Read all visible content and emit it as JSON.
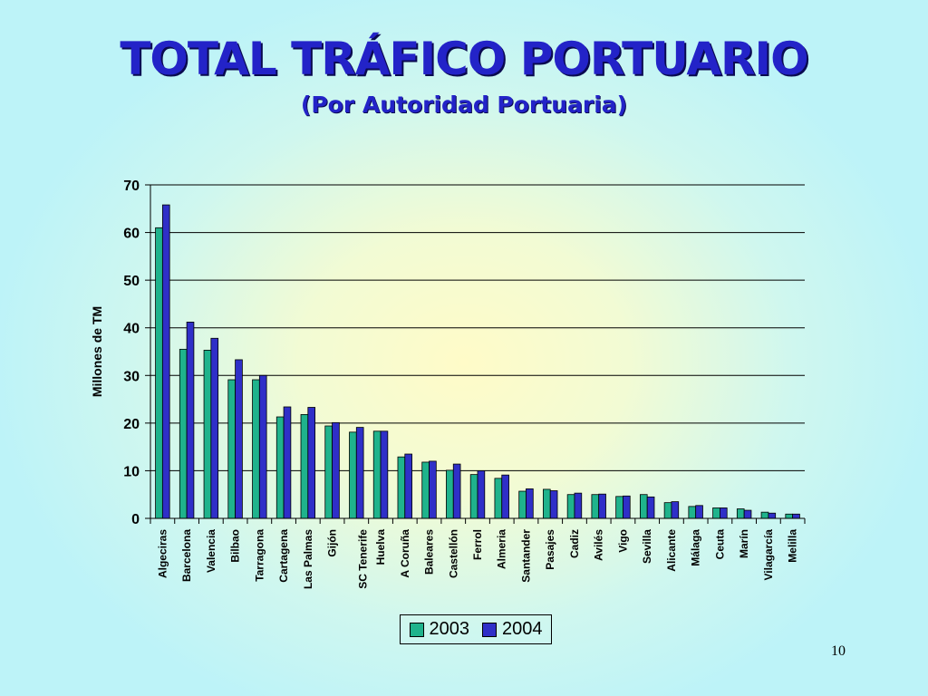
{
  "slide": {
    "page_number": "10"
  },
  "colors": {
    "series_2003": "#1fb38c",
    "series_2004": "#2f2fc8"
  },
  "chart_data": {
    "type": "bar",
    "title": "TOTAL TRÁFICO PORTUARIO",
    "subtitle": "(Por Autoridad Portuaria)",
    "xlabel": "",
    "ylabel": "Millones de TM",
    "ylim": [
      0,
      70
    ],
    "yticks": [
      "0",
      "10",
      "20",
      "30",
      "40",
      "50",
      "60",
      "70"
    ],
    "grid": true,
    "legend": "bottom",
    "categories": [
      "Algeciras",
      "Barcelona",
      "Valencia",
      "Bilbao",
      "Tarragona",
      "Cartagena",
      "Las Palmas",
      "Gijón",
      "SC Tenerife",
      "Huelva",
      "A Coruña",
      "Baleares",
      "Castellón",
      "Ferrol",
      "Almeria",
      "Santander",
      "Pasajes",
      "Cadiz",
      "Avilés",
      "Vigo",
      "Sevilla",
      "Alicante",
      "Málaga",
      "Ceuta",
      "Marín",
      "Vilagarcía",
      "Melilla"
    ],
    "series": [
      {
        "name": "2003",
        "values": [
          61,
          35.5,
          35.3,
          29.1,
          29.1,
          21.3,
          21.8,
          19.4,
          18.1,
          18.3,
          12.9,
          11.8,
          10.1,
          9.2,
          8.4,
          5.7,
          6.1,
          5.0,
          5.0,
          4.6,
          5.0,
          3.3,
          2.5,
          2.2,
          2.0,
          1.3,
          0.9
        ]
      },
      {
        "name": "2004",
        "values": [
          65.8,
          41.2,
          37.8,
          33.3,
          30.0,
          23.4,
          23.3,
          20.1,
          19.1,
          18.3,
          13.5,
          12.0,
          11.4,
          10.0,
          9.1,
          6.2,
          5.8,
          5.3,
          5.1,
          4.7,
          4.5,
          3.5,
          2.7,
          2.2,
          1.7,
          1.1,
          0.9
        ]
      }
    ]
  }
}
